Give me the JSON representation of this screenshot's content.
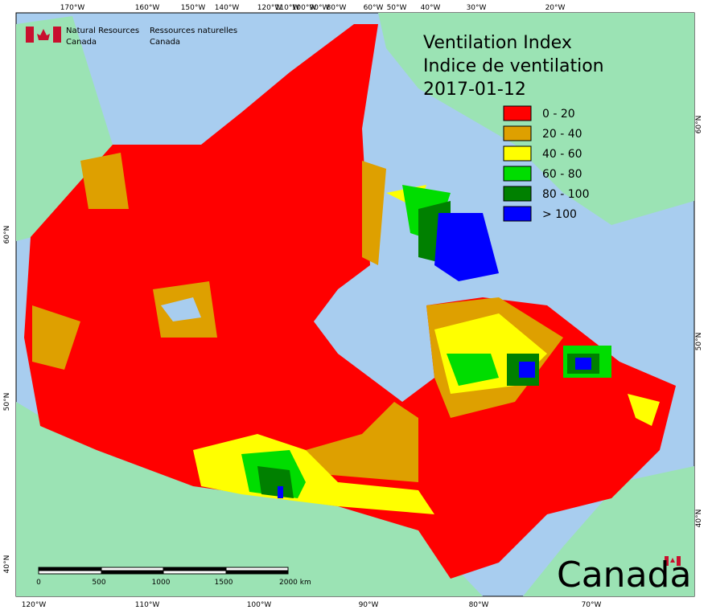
{
  "header": {
    "agency_en": [
      "Natural Resources",
      "Canada"
    ],
    "agency_fr": [
      "Ressources naturelles",
      "Canada"
    ]
  },
  "title": [
    "Ventilation Index",
    "Indice de ventilation",
    "2017-01-12"
  ],
  "legend": [
    {
      "label": "0 - 20",
      "color": "#ff0000"
    },
    {
      "label": "20 - 40",
      "color": "#dea000"
    },
    {
      "label": "40 - 60",
      "color": "#ffff00"
    },
    {
      "label": "60 - 80",
      "color": "#00dd00"
    },
    {
      "label": "80 - 100",
      "color": "#008000"
    },
    {
      "label": "> 100",
      "color": "#0000ff"
    }
  ],
  "graticule": {
    "top": [
      "170°W",
      "160°W",
      "150°W",
      "140°W",
      "120°W",
      "110°W",
      "100°W",
      "90°W",
      "80°W",
      "60°W",
      "50°W",
      "40°W",
      "30°W",
      "20°W"
    ],
    "bottom": [
      "120°W",
      "110°W",
      "100°W",
      "90°W",
      "80°W",
      "70°W"
    ],
    "left": [
      "60°N",
      "50°N",
      "40°N"
    ],
    "right": [
      "60°N",
      "50°N",
      "40°N"
    ]
  },
  "scale_bar": [
    "0",
    "500",
    "1000",
    "1500",
    "2000  km"
  ],
  "wordmark": "Canada"
}
